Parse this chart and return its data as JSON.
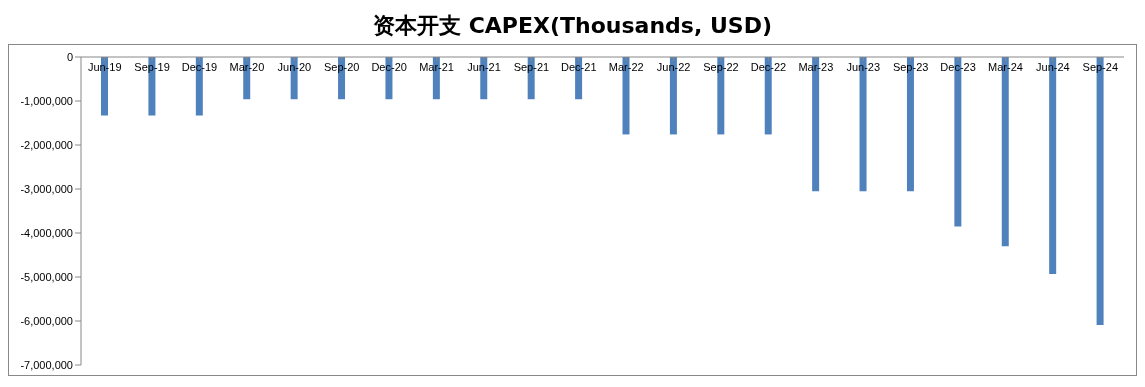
{
  "chart_data": {
    "type": "bar",
    "title": "资本开支 CAPEX(Thousands, USD)",
    "categories": [
      "Jun-19",
      "Sep-19",
      "Dec-19",
      "Mar-20",
      "Jun-20",
      "Sep-20",
      "Dec-20",
      "Mar-21",
      "Jun-21",
      "Sep-21",
      "Dec-21",
      "Mar-22",
      "Jun-22",
      "Sep-22",
      "Dec-22",
      "Mar-23",
      "Jun-23",
      "Sep-23",
      "Dec-23",
      "Mar-24",
      "Jun-24",
      "Sep-24"
    ],
    "values": [
      -1330000,
      -1330000,
      -1330000,
      -960000,
      -960000,
      -960000,
      -960000,
      -960000,
      -960000,
      -960000,
      -960000,
      -1760000,
      -1760000,
      -1760000,
      -1760000,
      -3050000,
      -3050000,
      -3050000,
      -3850000,
      -4300000,
      -4930000,
      -6090000
    ],
    "color": "#4f81bd",
    "ylim": [
      -7000000,
      0
    ],
    "yticks": [
      {
        "value": -7000000,
        "label": "-7,000,000"
      },
      {
        "value": -6000000,
        "label": "-6,000,000"
      },
      {
        "value": -5000000,
        "label": "-5,000,000"
      },
      {
        "value": -4000000,
        "label": "-4,000,000"
      },
      {
        "value": -3000000,
        "label": "-3,000,000"
      },
      {
        "value": -2000000,
        "label": "-2,000,000"
      },
      {
        "value": -1000000,
        "label": "-1,000,000"
      },
      0
    ],
    "grid": false,
    "legend": false
  }
}
